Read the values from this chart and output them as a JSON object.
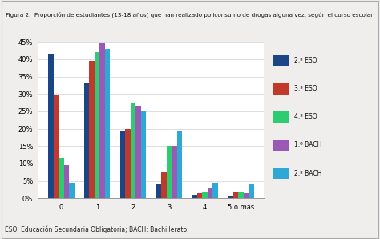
{
  "title": "Figura 2.  Proporción de estudiantes (13-18 años) que han realizado policonsumo de drogas alguna vez, según el curso escolar",
  "categories": [
    "0",
    "1",
    "2",
    "3",
    "4",
    "5 o más"
  ],
  "series_order": [
    "2.º ESO",
    "3.º ESO",
    "4.º ESO",
    "1.º BACH",
    "2.º BACH"
  ],
  "series": {
    "2.º ESO": [
      41.5,
      33.0,
      19.5,
      4.0,
      1.0,
      0.8
    ],
    "3.º ESO": [
      29.5,
      39.5,
      20.0,
      7.5,
      1.5,
      2.0
    ],
    "4.º ESO": [
      11.5,
      42.0,
      27.5,
      15.0,
      2.0,
      2.0
    ],
    "1.º BACH": [
      9.5,
      44.5,
      26.5,
      15.0,
      3.0,
      1.5
    ],
    "2.º BACH": [
      4.5,
      43.0,
      25.0,
      19.5,
      4.5,
      4.0
    ]
  },
  "colors": {
    "2.º ESO": "#1a4587",
    "3.º ESO": "#c0392b",
    "4.º ESO": "#2ecc71",
    "1.º BACH": "#9b59b6",
    "2.º BACH": "#2ea8d5"
  },
  "ylim": [
    0,
    45
  ],
  "yticks": [
    0,
    5,
    10,
    15,
    20,
    25,
    30,
    35,
    40,
    45
  ],
  "footnote": "ESO: Educación Secundaria Obligatoria; BACH: Bachillerato.",
  "bg_color": "#f0eeec",
  "title_bg": "#dcdad6",
  "plot_bg": "#ffffff",
  "border_color": "#aaaaaa",
  "grid_color": "#d0d0d0"
}
